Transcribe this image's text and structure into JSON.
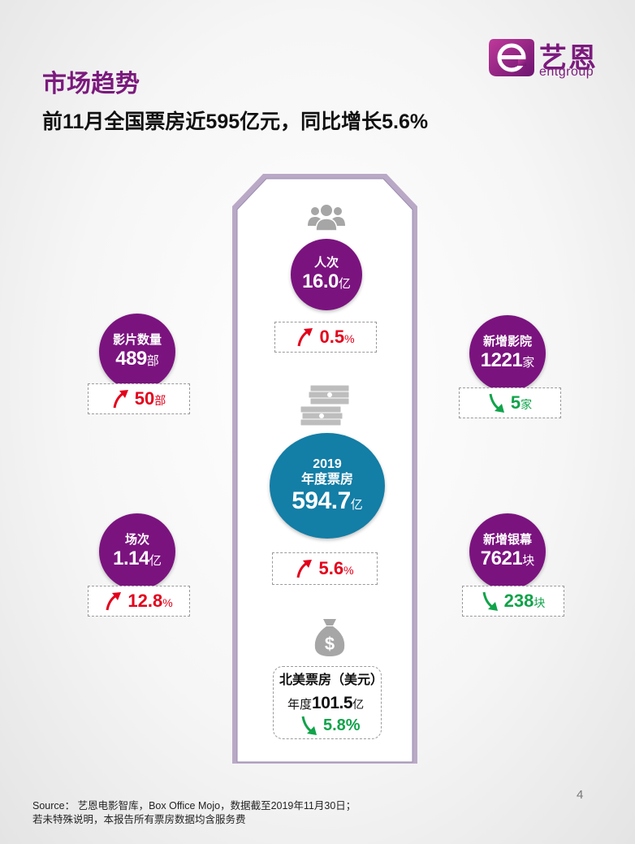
{
  "header": {
    "section_title": "市场趋势",
    "headline": "前11月全国票房近595亿元，同比增长5.6%"
  },
  "logo": {
    "cn": "艺恩",
    "en": "entgroup",
    "icon": "entgroup-e-logo"
  },
  "colors": {
    "purple": "#7b137f",
    "blue": "#137ea6",
    "up_red": "#e3001b",
    "down_green": "#10a34a"
  },
  "center": {
    "admissions": {
      "icon": "people-group-icon",
      "label": "人次",
      "value": "16.0",
      "unit": "亿",
      "change": "0.5",
      "change_unit": "%",
      "direction": "up"
    },
    "box_office": {
      "icon": "money-stack-icon",
      "year": "2019",
      "label": "年度票房",
      "value": "594.7",
      "unit": "亿",
      "change": "5.6",
      "change_unit": "%",
      "direction": "up"
    },
    "north_america": {
      "icon": "money-bag-icon",
      "title": "北美票房（美元）",
      "prefix": "年度",
      "value": "101.5",
      "unit": "亿",
      "change": "5.8%",
      "direction": "down"
    }
  },
  "left": [
    {
      "label": "影片数量",
      "value": "489",
      "unit": "部",
      "change": "50",
      "change_unit": "部",
      "direction": "up"
    },
    {
      "label": "场次",
      "value": "1.14",
      "unit": "亿",
      "change": "12.8",
      "change_unit": "%",
      "direction": "up"
    }
  ],
  "right": [
    {
      "label": "新增影院",
      "value": "1221",
      "unit": "家",
      "change": "5",
      "change_unit": "家",
      "direction": "down"
    },
    {
      "label": "新增银幕",
      "value": "7621",
      "unit": "块",
      "change": "238",
      "change_unit": "块",
      "direction": "down"
    }
  ],
  "footer": {
    "source": "Source： 艺恩电影智库，Box Office Mojo，数据截至2019年11月30日；",
    "note": "若未特殊说明，本报告所有票房数据均含服务费"
  },
  "page_number": "4"
}
